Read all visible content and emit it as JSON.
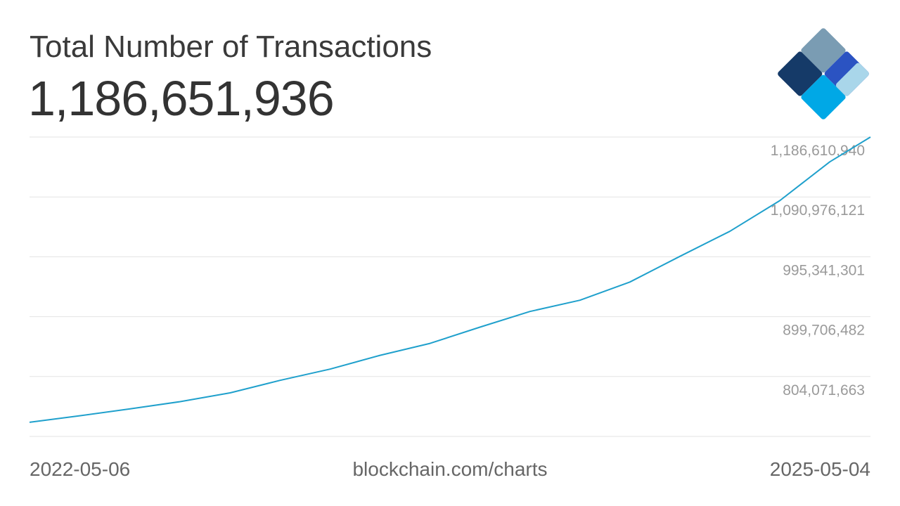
{
  "header": {
    "title": "Total Number of Transactions",
    "value": "1,186,651,936"
  },
  "logo": {
    "icon": "blockchain-diamond-logo",
    "colors": [
      "#7a9cb3",
      "#1a3a6a",
      "#2b53c2",
      "#00a8e6",
      "#a9d6ea"
    ]
  },
  "footer": {
    "start_date": "2022-05-06",
    "source": "blockchain.com/charts",
    "end_date": "2025-05-04"
  },
  "chart_data": {
    "type": "line",
    "xlabel": "",
    "ylabel": "",
    "xlim": [
      "2022-05-06",
      "2025-05-04"
    ],
    "ylim": [
      708436844,
      1186610940
    ],
    "grid": true,
    "line_color": "#1fa0cc",
    "yticks": [
      {
        "value": 1186610940,
        "label": "1,186,610,940"
      },
      {
        "value": 1090976121,
        "label": "1,090,976,121"
      },
      {
        "value": 995341301,
        "label": "995,341,301"
      },
      {
        "value": 899706482,
        "label": "899,706,482"
      },
      {
        "value": 804071663,
        "label": "804,071,663"
      }
    ],
    "x_labels": [
      "2022-05-06",
      "2025-05-04"
    ],
    "series": [
      {
        "x": [
          "2022-05-06",
          "2022-07-11",
          "2022-09-14",
          "2022-11-18",
          "2023-01-22",
          "2023-03-28",
          "2023-06-01",
          "2023-08-05",
          "2023-10-09",
          "2023-12-13",
          "2024-02-16",
          "2024-04-21",
          "2024-06-25",
          "2024-08-29",
          "2024-11-02",
          "2025-01-06",
          "2025-03-12",
          "2025-05-04"
        ],
        "y": [
          731000000,
          741500000,
          752600000,
          764000000,
          778000000,
          798000000,
          816000000,
          838000000,
          857000000,
          883000000,
          908000000,
          926000000,
          955000000,
          996000000,
          1036000000,
          1085000000,
          1147000000,
          1186610940
        ]
      }
    ]
  }
}
